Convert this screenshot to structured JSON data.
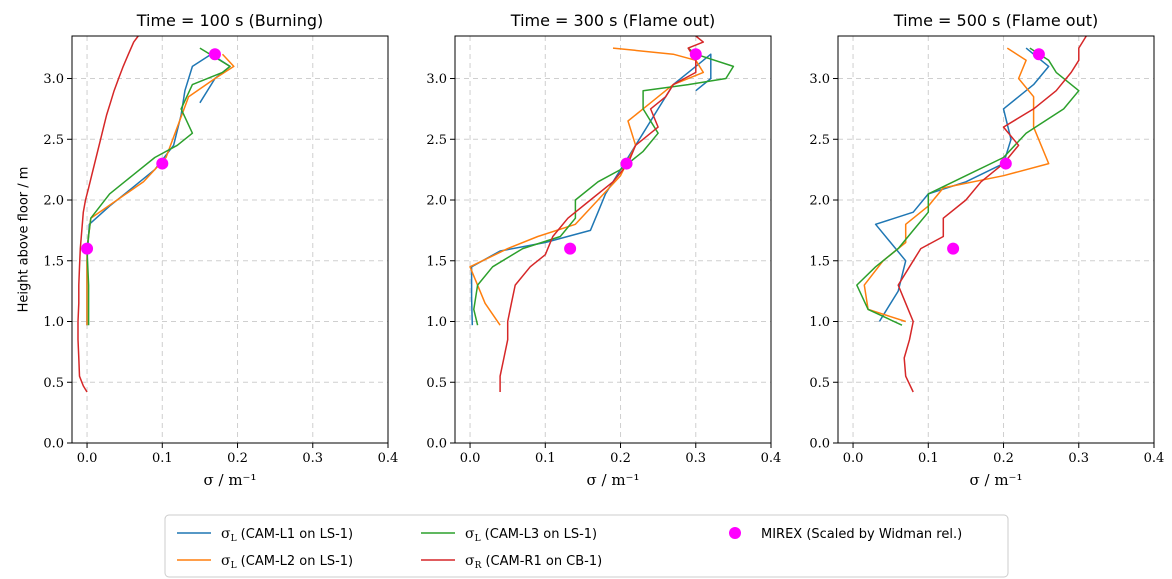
{
  "chart_data": {
    "type": "line",
    "ylabel": "Height above floor / m",
    "xlabel": "σ / m⁻¹",
    "xlim": [
      -0.02,
      0.4
    ],
    "ylim": [
      0,
      3.35
    ],
    "xticks": [
      "0.0",
      "0.1",
      "0.2",
      "0.3",
      "0.4"
    ],
    "yticks": [
      "0.0",
      "0.5",
      "1.0",
      "1.5",
      "2.0",
      "2.5",
      "3.0"
    ],
    "grid": true,
    "legend": {
      "placement": "bottom-center",
      "entries": [
        {
          "key": "L1",
          "sym": "σ",
          "sub": "L",
          "rest": " (CAM-L1 on LS-1)"
        },
        {
          "key": "L2",
          "sym": "σ",
          "sub": "L",
          "rest": " (CAM-L2 on LS-1)"
        },
        {
          "key": "L3",
          "sym": "σ",
          "sub": "L",
          "rest": " (CAM-L3 on LS-1)"
        },
        {
          "key": "R1",
          "sym": "σ",
          "sub": "R",
          "rest": " (CAM-R1 on CB-1)"
        },
        {
          "key": "MX",
          "sym": "",
          "sub": "",
          "rest": "MIREX (Scaled by Widman rel.)"
        }
      ]
    },
    "colors": {
      "L1": "#1f77b4",
      "L2": "#ff7f0e",
      "L3": "#2ca02c",
      "R1": "#d62728",
      "MX": "#ff00ff"
    },
    "panels": [
      {
        "title": "Time = 100 s (Burning)",
        "series": [
          {
            "key": "L1",
            "points": [
              [
                0.0,
                0.97
              ],
              [
                0.0,
                1.2
              ],
              [
                0.0,
                1.5
              ],
              [
                0.003,
                1.8
              ],
              [
                0.03,
                1.95
              ],
              [
                0.06,
                2.1
              ],
              [
                0.09,
                2.25
              ],
              [
                0.115,
                2.45
              ],
              [
                0.125,
                2.7
              ],
              [
                0.13,
                2.9
              ],
              [
                0.14,
                3.1
              ],
              [
                0.165,
                3.2
              ],
              [
                0.19,
                3.1
              ],
              [
                0.17,
                3.0
              ],
              [
                0.15,
                2.8
              ]
            ]
          },
          {
            "key": "L2",
            "points": [
              [
                0.0,
                0.97
              ],
              [
                0.0,
                1.3
              ],
              [
                0.0,
                1.6
              ],
              [
                0.005,
                1.85
              ],
              [
                0.04,
                2.0
              ],
              [
                0.075,
                2.15
              ],
              [
                0.105,
                2.35
              ],
              [
                0.12,
                2.6
              ],
              [
                0.135,
                2.85
              ],
              [
                0.17,
                3.0
              ],
              [
                0.195,
                3.1
              ],
              [
                0.18,
                3.2
              ]
            ]
          },
          {
            "key": "L3",
            "points": [
              [
                0.002,
                0.97
              ],
              [
                0.002,
                1.3
              ],
              [
                0.0,
                1.6
              ],
              [
                0.005,
                1.85
              ],
              [
                0.03,
                2.05
              ],
              [
                0.06,
                2.2
              ],
              [
                0.09,
                2.35
              ],
              [
                0.12,
                2.45
              ],
              [
                0.14,
                2.55
              ],
              [
                0.125,
                2.75
              ],
              [
                0.14,
                2.95
              ],
              [
                0.18,
                3.05
              ],
              [
                0.19,
                3.1
              ],
              [
                0.15,
                3.25
              ]
            ]
          },
          {
            "key": "R1",
            "points": [
              [
                0.0,
                0.42
              ],
              [
                -0.005,
                0.47
              ],
              [
                -0.01,
                0.55
              ],
              [
                -0.011,
                0.7
              ],
              [
                -0.012,
                0.85
              ],
              [
                -0.012,
                1.0
              ],
              [
                -0.011,
                1.15
              ],
              [
                -0.011,
                1.3
              ],
              [
                -0.01,
                1.45
              ],
              [
                -0.009,
                1.6
              ],
              [
                -0.007,
                1.75
              ],
              [
                -0.005,
                1.9
              ],
              [
                -0.002,
                2.0
              ],
              [
                0.002,
                2.1
              ],
              [
                0.006,
                2.2
              ],
              [
                0.01,
                2.3
              ],
              [
                0.014,
                2.4
              ],
              [
                0.018,
                2.5
              ],
              [
                0.022,
                2.6
              ],
              [
                0.026,
                2.7
              ],
              [
                0.031,
                2.8
              ],
              [
                0.036,
                2.9
              ],
              [
                0.042,
                3.0
              ],
              [
                0.048,
                3.1
              ],
              [
                0.055,
                3.2
              ],
              [
                0.062,
                3.3
              ],
              [
                0.068,
                3.35
              ]
            ]
          }
        ],
        "mirex": [
          [
            0.0,
            1.6
          ],
          [
            0.1,
            2.3
          ],
          [
            0.17,
            3.2
          ]
        ]
      },
      {
        "title": "Time = 300 s (Flame out)",
        "series": [
          {
            "key": "L1",
            "points": [
              [
                0.003,
                0.97
              ],
              [
                0.002,
                1.2
              ],
              [
                0.002,
                1.45
              ],
              [
                0.04,
                1.58
              ],
              [
                0.1,
                1.65
              ],
              [
                0.16,
                1.75
              ],
              [
                0.17,
                1.9
              ],
              [
                0.18,
                2.05
              ],
              [
                0.195,
                2.2
              ],
              [
                0.21,
                2.35
              ],
              [
                0.23,
                2.55
              ],
              [
                0.25,
                2.75
              ],
              [
                0.27,
                2.95
              ],
              [
                0.3,
                3.1
              ],
              [
                0.32,
                3.2
              ],
              [
                0.32,
                3.0
              ],
              [
                0.3,
                2.9
              ]
            ]
          },
          {
            "key": "L2",
            "points": [
              [
                0.04,
                0.97
              ],
              [
                0.02,
                1.15
              ],
              [
                0.0,
                1.45
              ],
              [
                0.05,
                1.6
              ],
              [
                0.09,
                1.7
              ],
              [
                0.14,
                1.8
              ],
              [
                0.17,
                2.0
              ],
              [
                0.2,
                2.2
              ],
              [
                0.22,
                2.45
              ],
              [
                0.21,
                2.65
              ],
              [
                0.24,
                2.8
              ],
              [
                0.27,
                2.95
              ],
              [
                0.31,
                3.05
              ],
              [
                0.3,
                3.15
              ],
              [
                0.27,
                3.2
              ],
              [
                0.19,
                3.25
              ]
            ]
          },
          {
            "key": "L3",
            "points": [
              [
                0.01,
                0.97
              ],
              [
                0.005,
                1.1
              ],
              [
                0.01,
                1.3
              ],
              [
                0.03,
                1.45
              ],
              [
                0.07,
                1.6
              ],
              [
                0.12,
                1.7
              ],
              [
                0.14,
                1.85
              ],
              [
                0.14,
                2.0
              ],
              [
                0.17,
                2.15
              ],
              [
                0.2,
                2.25
              ],
              [
                0.23,
                2.4
              ],
              [
                0.25,
                2.55
              ],
              [
                0.23,
                2.75
              ],
              [
                0.23,
                2.9
              ],
              [
                0.29,
                2.95
              ],
              [
                0.34,
                3.0
              ],
              [
                0.35,
                3.1
              ],
              [
                0.3,
                3.2
              ],
              [
                0.29,
                3.25
              ]
            ]
          },
          {
            "key": "R1",
            "points": [
              [
                0.04,
                0.42
              ],
              [
                0.04,
                0.55
              ],
              [
                0.045,
                0.7
              ],
              [
                0.05,
                0.85
              ],
              [
                0.05,
                1.0
              ],
              [
                0.055,
                1.15
              ],
              [
                0.06,
                1.3
              ],
              [
                0.08,
                1.45
              ],
              [
                0.1,
                1.55
              ],
              [
                0.11,
                1.7
              ],
              [
                0.13,
                1.85
              ],
              [
                0.16,
                2.0
              ],
              [
                0.19,
                2.15
              ],
              [
                0.21,
                2.3
              ],
              [
                0.22,
                2.45
              ],
              [
                0.25,
                2.6
              ],
              [
                0.24,
                2.75
              ],
              [
                0.26,
                2.85
              ],
              [
                0.27,
                2.95
              ],
              [
                0.3,
                3.05
              ],
              [
                0.3,
                3.15
              ],
              [
                0.29,
                3.25
              ],
              [
                0.31,
                3.3
              ],
              [
                0.3,
                3.35
              ]
            ]
          }
        ],
        "mirex": [
          [
            0.133,
            1.6
          ],
          [
            0.208,
            2.3
          ],
          [
            0.3,
            3.2
          ]
        ]
      },
      {
        "title": "Time = 500 s (Flame out)",
        "series": [
          {
            "key": "L1",
            "points": [
              [
                0.035,
                1.0
              ],
              [
                0.06,
                1.25
              ],
              [
                0.07,
                1.5
              ],
              [
                0.03,
                1.8
              ],
              [
                0.08,
                1.9
              ],
              [
                0.1,
                2.05
              ],
              [
                0.15,
                2.15
              ],
              [
                0.2,
                2.3
              ],
              [
                0.21,
                2.5
              ],
              [
                0.2,
                2.75
              ],
              [
                0.24,
                2.95
              ],
              [
                0.26,
                3.1
              ],
              [
                0.23,
                3.25
              ]
            ]
          },
          {
            "key": "L2",
            "points": [
              [
                0.07,
                1.0
              ],
              [
                0.02,
                1.1
              ],
              [
                0.015,
                1.3
              ],
              [
                0.04,
                1.5
              ],
              [
                0.07,
                1.65
              ],
              [
                0.07,
                1.8
              ],
              [
                0.1,
                1.95
              ],
              [
                0.12,
                2.1
              ],
              [
                0.2,
                2.2
              ],
              [
                0.26,
                2.3
              ],
              [
                0.24,
                2.6
              ],
              [
                0.24,
                2.85
              ],
              [
                0.22,
                3.0
              ],
              [
                0.23,
                3.15
              ],
              [
                0.205,
                3.25
              ]
            ]
          },
          {
            "key": "L3",
            "points": [
              [
                0.065,
                0.97
              ],
              [
                0.02,
                1.1
              ],
              [
                0.005,
                1.3
              ],
              [
                0.03,
                1.45
              ],
              [
                0.06,
                1.6
              ],
              [
                0.08,
                1.75
              ],
              [
                0.1,
                1.9
              ],
              [
                0.1,
                2.05
              ],
              [
                0.15,
                2.2
              ],
              [
                0.2,
                2.35
              ],
              [
                0.23,
                2.55
              ],
              [
                0.28,
                2.75
              ],
              [
                0.3,
                2.9
              ],
              [
                0.27,
                3.05
              ],
              [
                0.26,
                3.15
              ],
              [
                0.235,
                3.25
              ]
            ]
          },
          {
            "key": "R1",
            "points": [
              [
                0.08,
                0.42
              ],
              [
                0.07,
                0.55
              ],
              [
                0.068,
                0.7
              ],
              [
                0.075,
                0.85
              ],
              [
                0.08,
                1.0
              ],
              [
                0.07,
                1.15
              ],
              [
                0.06,
                1.3
              ],
              [
                0.075,
                1.45
              ],
              [
                0.09,
                1.6
              ],
              [
                0.12,
                1.7
              ],
              [
                0.12,
                1.85
              ],
              [
                0.15,
                2.0
              ],
              [
                0.17,
                2.15
              ],
              [
                0.2,
                2.3
              ],
              [
                0.22,
                2.45
              ],
              [
                0.2,
                2.6
              ],
              [
                0.24,
                2.75
              ],
              [
                0.27,
                2.9
              ],
              [
                0.29,
                3.05
              ],
              [
                0.3,
                3.15
              ],
              [
                0.3,
                3.25
              ],
              [
                0.31,
                3.35
              ]
            ]
          }
        ],
        "mirex": [
          [
            0.133,
            1.6
          ],
          [
            0.203,
            2.3
          ],
          [
            0.247,
            3.2
          ]
        ]
      }
    ]
  }
}
